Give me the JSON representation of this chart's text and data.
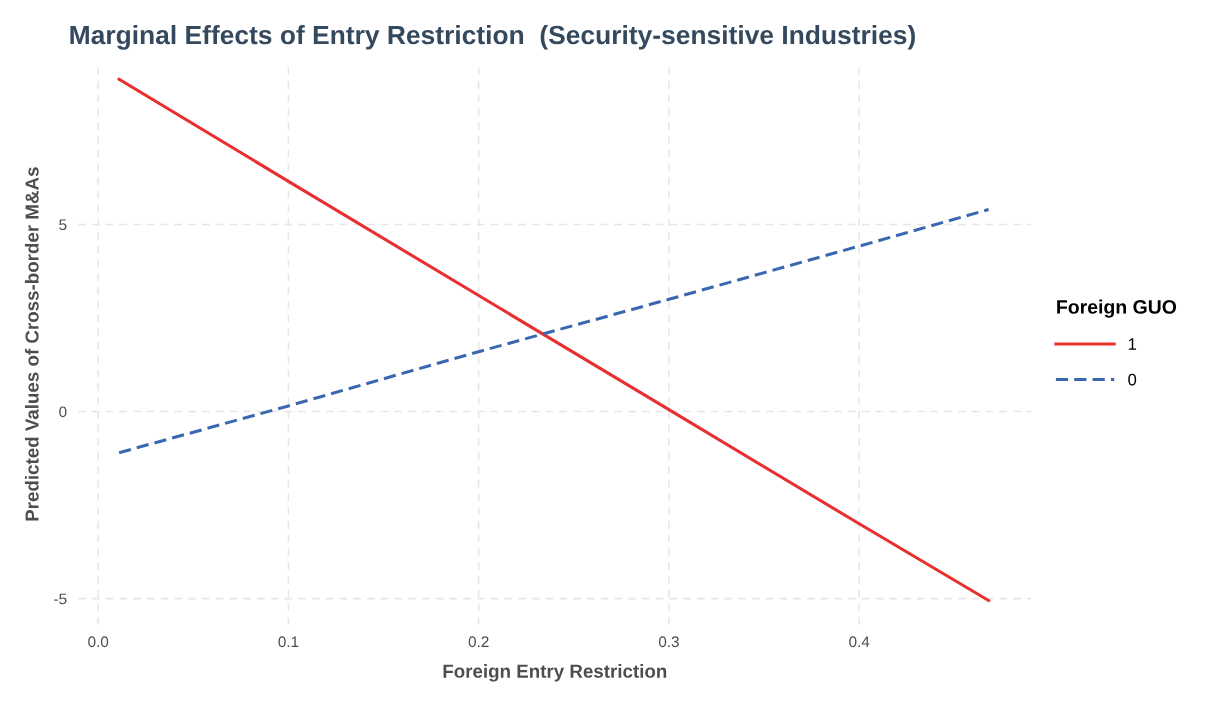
{
  "chart_data": {
    "type": "line",
    "title": "Marginal Effects of Entry Restriction  (Security-sensitive Industries)",
    "xlabel": "Foreign Entry Restriction",
    "ylabel": "Predicted Values of Cross-border M&As",
    "legend_title": "Foreign GUO",
    "series": [
      {
        "name": "1",
        "color": "#e8302f",
        "line_style": "solid",
        "x": [
          0.011,
          0.1,
          0.2,
          0.3,
          0.4,
          0.468
        ],
        "values": [
          8.88,
          6.15,
          3.1,
          0.05,
          -3.0,
          -5.05
        ]
      },
      {
        "name": "0",
        "color": "#3a68b0",
        "line_style": "dashed",
        "x": [
          0.011,
          0.1,
          0.2,
          0.3,
          0.4,
          0.468
        ],
        "values": [
          -1.1,
          0.15,
          1.6,
          3.0,
          4.42,
          5.4
        ]
      }
    ],
    "xlim": [
      -0.0105,
      0.4905
    ],
    "ylim": [
      -5.7,
      9.3
    ],
    "xticks": [
      {
        "value": 0,
        "label": "0.0"
      },
      {
        "value": 0.1,
        "label": "0.1"
      },
      {
        "value": 0.2,
        "label": "0.2"
      },
      {
        "value": 0.3,
        "label": "0.3"
      },
      {
        "value": 0.4,
        "label": "0.4"
      }
    ],
    "yticks": [
      -5,
      0,
      5
    ],
    "grid": true,
    "legend": "right"
  }
}
